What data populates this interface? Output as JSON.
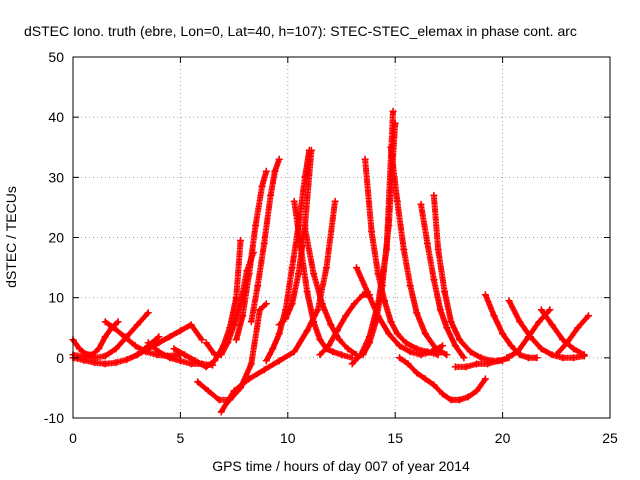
{
  "chart_data": {
    "type": "scatter",
    "title": "dSTEC Iono. truth (ebre, Lon=0, Lat=40, h=107): STEC-STEC_elemax in phase cont. arc",
    "xlabel": "GPS time / hours of day 007 of year 2014",
    "ylabel": "dSTEC  / TECUs",
    "xlim": [
      0,
      25
    ],
    "ylim": [
      -10,
      50
    ],
    "xticks": [
      0,
      5,
      10,
      15,
      20,
      25
    ],
    "yticks": [
      -10,
      0,
      10,
      20,
      30,
      40,
      50
    ],
    "grid": true,
    "marker": "+",
    "color": "#ff0000",
    "series": [
      {
        "x": [
          0.0,
          0.3,
          0.6,
          0.9,
          1.2,
          1.5,
          1.8,
          2.1
        ],
        "y": [
          3.0,
          1.5,
          0.6,
          0.5,
          1.5,
          3.5,
          5.0,
          6.0
        ]
      },
      {
        "x": [
          0.0,
          0.5,
          1.0,
          1.5,
          2.0,
          2.5,
          3.0,
          3.5
        ],
        "y": [
          0.5,
          0.2,
          0.0,
          0.3,
          1.5,
          3.5,
          5.5,
          7.5
        ]
      },
      {
        "x": [
          0.0,
          0.5,
          1.0,
          1.5,
          2.0,
          2.5,
          3.0,
          3.5,
          4.0
        ],
        "y": [
          0.0,
          -0.4,
          -0.8,
          -1.0,
          -0.8,
          -0.3,
          0.5,
          2.0,
          3.5
        ]
      },
      {
        "x": [
          1.5,
          1.9,
          2.4,
          2.9,
          3.4,
          3.9,
          4.4,
          5.0
        ],
        "y": [
          6.0,
          5.0,
          3.5,
          2.0,
          1.0,
          0.5,
          0.3,
          0.5
        ]
      },
      {
        "x": [
          3.0,
          3.5,
          4.0,
          4.5,
          5.0,
          5.5,
          6.0
        ],
        "y": [
          0.5,
          1.5,
          2.5,
          3.5,
          4.5,
          5.5,
          3.0
        ]
      },
      {
        "x": [
          3.5,
          4.0,
          4.5,
          5.0,
          5.5,
          6.0,
          6.5
        ],
        "y": [
          2.5,
          1.0,
          0.0,
          -0.5,
          -1.0,
          -1.0,
          -1.2
        ]
      },
      {
        "x": [
          4.7,
          5.2,
          5.7,
          6.2,
          6.6,
          7.0,
          7.3,
          7.6,
          7.8
        ],
        "y": [
          1.5,
          0.5,
          -0.5,
          -1.5,
          -0.5,
          2.0,
          5.0,
          10.0,
          19.5
        ]
      },
      {
        "x": [
          6.2,
          6.6,
          6.9,
          7.2,
          7.5,
          7.8,
          8.1,
          8.4
        ],
        "y": [
          2.5,
          0.5,
          0.5,
          2.5,
          5.5,
          9.0,
          14.5,
          17.5
        ]
      },
      {
        "x": [
          5.8,
          6.3,
          6.8,
          7.3,
          7.8,
          8.3,
          8.7,
          9.0
        ],
        "y": [
          -4.0,
          -5.5,
          -7.0,
          -7.0,
          -5.0,
          -1.0,
          8.0,
          9.0
        ]
      },
      {
        "x": [
          6.9,
          7.5,
          8.2,
          8.9,
          9.6,
          10.3,
          10.9,
          11.4,
          11.8,
          12.2
        ],
        "y": [
          -9.0,
          -5.5,
          -3.5,
          -2.0,
          -0.5,
          1.0,
          4.5,
          8.0,
          15.0,
          26.0
        ]
      },
      {
        "x": [
          7.6,
          7.9,
          8.2,
          8.5,
          8.8,
          9.0
        ],
        "y": [
          3.0,
          7.0,
          14.0,
          22.0,
          28.5,
          31.0
        ]
      },
      {
        "x": [
          8.3,
          8.6,
          8.9,
          9.2,
          9.4,
          9.6
        ],
        "y": [
          6.0,
          12.0,
          19.0,
          27.0,
          31.0,
          33.0
        ]
      },
      {
        "x": [
          9.0,
          9.3,
          9.6,
          9.9,
          10.2,
          10.5,
          10.8,
          11.0
        ],
        "y": [
          -0.5,
          1.5,
          4.0,
          8.0,
          15.0,
          22.0,
          30.0,
          34.5
        ]
      },
      {
        "x": [
          9.6,
          9.9,
          10.2,
          10.5,
          10.8,
          11.1
        ],
        "y": [
          5.5,
          6.5,
          9.0,
          14.0,
          22.0,
          34.5
        ]
      },
      {
        "x": [
          10.3,
          10.6,
          10.9,
          11.2,
          11.5,
          11.8,
          12.1,
          12.5,
          13.0
        ],
        "y": [
          26.0,
          18.5,
          11.0,
          6.0,
          3.0,
          1.5,
          1.0,
          0.5,
          0.0
        ]
      },
      {
        "x": [
          10.8,
          11.2,
          11.6,
          12.0,
          12.4,
          12.8,
          13.2
        ],
        "y": [
          21.5,
          14.0,
          9.0,
          5.5,
          3.0,
          1.5,
          0.5
        ]
      },
      {
        "x": [
          11.5,
          11.9,
          12.3,
          12.7,
          13.1,
          13.5,
          13.8
        ],
        "y": [
          0.5,
          2.0,
          4.5,
          7.0,
          9.0,
          10.5,
          10.5
        ]
      },
      {
        "x": [
          13.0,
          13.4,
          13.8,
          14.2,
          14.6,
          14.9
        ],
        "y": [
          -1.0,
          0.5,
          3.5,
          9.0,
          18.0,
          41.0
        ]
      },
      {
        "x": [
          13.5,
          13.8,
          14.1,
          14.4,
          14.7,
          15.0
        ],
        "y": [
          0.5,
          2.5,
          6.0,
          12.0,
          22.0,
          39.0
        ]
      },
      {
        "x": [
          13.6,
          13.9,
          14.2,
          14.5,
          14.8,
          15.1,
          15.5,
          16.0,
          16.5,
          17.0
        ],
        "y": [
          33.0,
          21.0,
          14.0,
          9.5,
          6.0,
          4.0,
          2.5,
          1.5,
          1.0,
          0.5
        ]
      },
      {
        "x": [
          14.8,
          15.1,
          15.4,
          15.7,
          16.0,
          16.4,
          16.9,
          17.4
        ],
        "y": [
          35.0,
          26.0,
          18.0,
          12.0,
          7.5,
          4.0,
          1.5,
          0.5
        ]
      },
      {
        "x": [
          13.2,
          13.7,
          14.2,
          14.7,
          15.2,
          15.7,
          16.2,
          16.7,
          17.2
        ],
        "y": [
          15.0,
          11.0,
          7.0,
          4.0,
          2.0,
          1.0,
          0.5,
          1.0,
          2.0
        ]
      },
      {
        "x": [
          15.2,
          15.6,
          16.0,
          16.4,
          16.8,
          17.2,
          17.6,
          18.0,
          18.4,
          18.8,
          19.2
        ],
        "y": [
          0.0,
          -1.0,
          -2.5,
          -3.5,
          -4.5,
          -6.0,
          -7.0,
          -7.0,
          -6.5,
          -5.5,
          -3.5
        ]
      },
      {
        "x": [
          16.2,
          16.5,
          16.8,
          17.1,
          17.4,
          17.8,
          18.2
        ],
        "y": [
          25.5,
          19.0,
          13.0,
          8.0,
          5.0,
          2.0,
          0.0
        ]
      },
      {
        "x": [
          16.8,
          17.0,
          17.3,
          17.6,
          18.0,
          18.5,
          19.0,
          19.5,
          20.0
        ],
        "y": [
          27.0,
          18.0,
          11.0,
          6.0,
          3.0,
          1.0,
          0.0,
          -0.5,
          -0.5
        ]
      },
      {
        "x": [
          17.8,
          18.3,
          18.8,
          19.3,
          19.8,
          20.3
        ],
        "y": [
          -1.5,
          -1.5,
          -1.0,
          -1.0,
          -0.5,
          0.0
        ]
      },
      {
        "x": [
          19.2,
          19.6,
          20.0,
          20.4,
          20.8,
          21.2,
          21.6
        ],
        "y": [
          10.5,
          7.0,
          4.0,
          2.0,
          0.5,
          0.0,
          0.0
        ]
      },
      {
        "x": [
          20.3,
          20.8,
          21.3,
          21.8,
          22.3,
          22.8,
          23.3,
          23.8
        ],
        "y": [
          9.5,
          6.0,
          3.5,
          1.5,
          0.5,
          0.0,
          0.0,
          0.3
        ]
      },
      {
        "x": [
          20.2,
          20.7,
          21.2,
          21.7,
          22.2
        ],
        "y": [
          0.0,
          1.0,
          3.5,
          6.0,
          8.0
        ]
      },
      {
        "x": [
          21.8,
          22.3,
          22.8,
          23.3,
          23.8
        ],
        "y": [
          8.0,
          5.5,
          3.0,
          1.5,
          0.5
        ]
      },
      {
        "x": [
          22.5,
          23.0,
          23.5,
          24.0
        ],
        "y": [
          0.5,
          2.5,
          5.0,
          7.0
        ]
      }
    ]
  }
}
